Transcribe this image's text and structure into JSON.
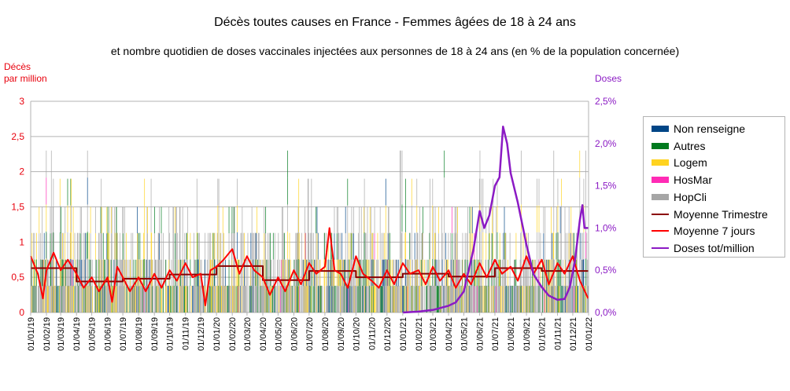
{
  "chart_data": {
    "type": "bar+line",
    "title": "Décès toutes causes en France - Femmes âgées de 18 à 24 ans",
    "subtitle": "et nombre quotidien de doses vaccinales injectées aux personnes de 18 à 24 ans (en % de la population concernée)",
    "ylabel_left": "Décès\npar million",
    "ylabel_right": "Doses",
    "ylim_left": [
      0,
      3
    ],
    "ylim_right": [
      0,
      0.025
    ],
    "yticks_left": [
      "0",
      "0,5",
      "1",
      "1,5",
      "2",
      "2,5",
      "3"
    ],
    "yticks_right": [
      "0,0%",
      "0,5%",
      "1,0%",
      "1,5%",
      "2,0%",
      "2,5%"
    ],
    "xticks": [
      "01/01/19",
      "01/02/19",
      "01/03/19",
      "01/04/19",
      "01/05/19",
      "01/06/19",
      "01/07/19",
      "01/08/19",
      "01/09/19",
      "01/10/19",
      "01/11/19",
      "01/12/19",
      "01/01/20",
      "01/02/20",
      "01/03/20",
      "01/04/20",
      "01/05/20",
      "01/06/20",
      "01/07/20",
      "01/08/20",
      "01/09/20",
      "01/10/20",
      "01/11/20",
      "01/12/20",
      "01/01/21",
      "01/02/21",
      "01/03/21",
      "01/04/21",
      "01/05/21",
      "01/06/21",
      "01/07/21",
      "01/08/21",
      "01/09/21",
      "01/10/21",
      "01/11/21",
      "01/12/21",
      "01/01/22"
    ],
    "grid": true,
    "legend_position": "right",
    "series": [
      {
        "name": "Non renseigne",
        "color": "#004586",
        "kind": "bar"
      },
      {
        "name": "Autres",
        "color": "#007a1e",
        "kind": "bar"
      },
      {
        "name": "Logem",
        "color": "#ffd320",
        "kind": "bar"
      },
      {
        "name": "HosMar",
        "color": "#ff2bb5",
        "kind": "bar"
      },
      {
        "name": "HopCli",
        "color": "#a6a6a6",
        "kind": "bar"
      },
      {
        "name": "Moyenne Trimestre",
        "color": "#8b0000",
        "kind": "step",
        "points": [
          [
            "01/01/19",
            0.63
          ],
          [
            "01/04/19",
            0.44
          ],
          [
            "01/07/19",
            0.48
          ],
          [
            "01/10/19",
            0.54
          ],
          [
            "01/01/20",
            0.66
          ],
          [
            "01/04/20",
            0.46
          ],
          [
            "01/07/20",
            0.59
          ],
          [
            "01/10/20",
            0.5
          ],
          [
            "01/01/21",
            0.55
          ],
          [
            "01/04/21",
            0.51
          ],
          [
            "01/07/21",
            0.63
          ],
          [
            "01/10/21",
            0.59
          ],
          [
            "31/12/21",
            0.59
          ]
        ]
      },
      {
        "name": "Moyenne 7 jours",
        "color": "#ff0000",
        "kind": "line",
        "points": [
          [
            "01/01/19",
            0.8
          ],
          [
            "15/01/19",
            0.55
          ],
          [
            "25/01/19",
            0.2
          ],
          [
            "01/02/19",
            0.6
          ],
          [
            "15/02/19",
            0.85
          ],
          [
            "01/03/19",
            0.6
          ],
          [
            "15/03/19",
            0.75
          ],
          [
            "01/04/19",
            0.55
          ],
          [
            "15/04/19",
            0.35
          ],
          [
            "01/05/19",
            0.5
          ],
          [
            "15/05/19",
            0.3
          ],
          [
            "01/06/19",
            0.5
          ],
          [
            "10/06/19",
            0.15
          ],
          [
            "20/06/19",
            0.65
          ],
          [
            "01/07/19",
            0.5
          ],
          [
            "15/07/19",
            0.3
          ],
          [
            "01/08/19",
            0.5
          ],
          [
            "15/08/19",
            0.3
          ],
          [
            "01/09/19",
            0.55
          ],
          [
            "15/09/19",
            0.35
          ],
          [
            "01/10/19",
            0.6
          ],
          [
            "15/10/19",
            0.45
          ],
          [
            "01/11/19",
            0.7
          ],
          [
            "15/11/19",
            0.5
          ],
          [
            "01/12/19",
            0.55
          ],
          [
            "10/12/19",
            0.1
          ],
          [
            "20/12/19",
            0.6
          ],
          [
            "01/01/20",
            0.65
          ],
          [
            "15/01/20",
            0.75
          ],
          [
            "01/02/20",
            0.9
          ],
          [
            "15/02/20",
            0.55
          ],
          [
            "01/03/20",
            0.8
          ],
          [
            "15/03/20",
            0.6
          ],
          [
            "01/04/20",
            0.5
          ],
          [
            "15/04/20",
            0.25
          ],
          [
            "01/05/20",
            0.5
          ],
          [
            "15/05/20",
            0.3
          ],
          [
            "01/06/20",
            0.6
          ],
          [
            "15/06/20",
            0.4
          ],
          [
            "01/07/20",
            0.7
          ],
          [
            "15/07/20",
            0.55
          ],
          [
            "01/08/20",
            0.65
          ],
          [
            "10/08/20",
            1.2
          ],
          [
            "20/08/20",
            0.6
          ],
          [
            "01/09/20",
            0.55
          ],
          [
            "15/09/20",
            0.35
          ],
          [
            "01/10/20",
            0.8
          ],
          [
            "15/10/20",
            0.55
          ],
          [
            "01/11/20",
            0.45
          ],
          [
            "15/11/20",
            0.35
          ],
          [
            "01/12/20",
            0.6
          ],
          [
            "15/12/20",
            0.4
          ],
          [
            "01/01/21",
            0.7
          ],
          [
            "15/01/21",
            0.55
          ],
          [
            "01/02/21",
            0.6
          ],
          [
            "15/02/21",
            0.4
          ],
          [
            "01/03/21",
            0.65
          ],
          [
            "15/03/21",
            0.45
          ],
          [
            "01/04/21",
            0.6
          ],
          [
            "15/04/21",
            0.35
          ],
          [
            "01/05/21",
            0.55
          ],
          [
            "15/05/21",
            0.4
          ],
          [
            "01/06/21",
            0.7
          ],
          [
            "15/06/21",
            0.5
          ],
          [
            "01/07/21",
            0.75
          ],
          [
            "15/07/21",
            0.55
          ],
          [
            "01/08/21",
            0.65
          ],
          [
            "15/08/21",
            0.45
          ],
          [
            "01/09/21",
            0.8
          ],
          [
            "15/09/21",
            0.55
          ],
          [
            "01/10/21",
            0.75
          ],
          [
            "15/10/21",
            0.4
          ],
          [
            "01/11/21",
            0.7
          ],
          [
            "15/11/21",
            0.55
          ],
          [
            "01/12/21",
            0.8
          ],
          [
            "15/12/21",
            0.45
          ],
          [
            "31/12/21",
            0.2
          ]
        ]
      },
      {
        "name": "Doses tot/million",
        "color": "#8b1ac4",
        "kind": "line",
        "axis": "right",
        "points": [
          [
            "01/01/21",
            0.0
          ],
          [
            "01/02/21",
            0.0001
          ],
          [
            "01/03/21",
            0.0003
          ],
          [
            "01/04/21",
            0.0008
          ],
          [
            "15/04/21",
            0.0012
          ],
          [
            "01/05/21",
            0.0025
          ],
          [
            "20/05/21",
            0.0075
          ],
          [
            "01/06/21",
            0.012
          ],
          [
            "10/06/21",
            0.01
          ],
          [
            "20/06/21",
            0.0115
          ],
          [
            "01/07/21",
            0.015
          ],
          [
            "10/07/21",
            0.016
          ],
          [
            "17/07/21",
            0.022
          ],
          [
            "25/07/21",
            0.02
          ],
          [
            "01/08/21",
            0.0165
          ],
          [
            "15/08/21",
            0.013
          ],
          [
            "01/09/21",
            0.008
          ],
          [
            "15/09/21",
            0.0045
          ],
          [
            "01/10/21",
            0.003
          ],
          [
            "15/10/21",
            0.002
          ],
          [
            "01/11/21",
            0.0015
          ],
          [
            "15/11/21",
            0.0016
          ],
          [
            "25/11/21",
            0.003
          ],
          [
            "05/12/21",
            0.006
          ],
          [
            "15/12/21",
            0.011
          ],
          [
            "20/12/21",
            0.0127
          ],
          [
            "24/12/21",
            0.01
          ],
          [
            "31/12/21",
            0.01
          ]
        ]
      }
    ]
  }
}
